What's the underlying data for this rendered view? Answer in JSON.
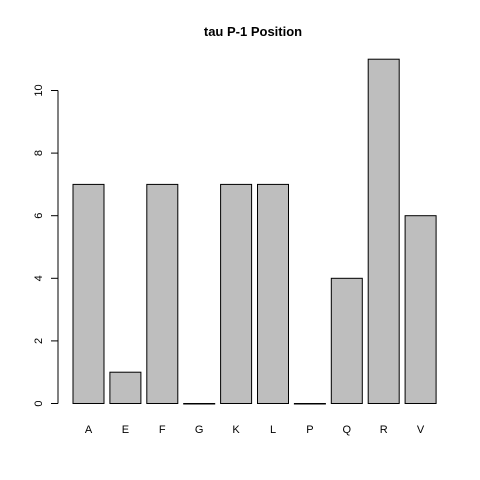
{
  "chart_data": {
    "type": "bar",
    "title": "tau P-1 Position",
    "categories": [
      "A",
      "E",
      "F",
      "G",
      "K",
      "L",
      "P",
      "Q",
      "R",
      "V"
    ],
    "values": [
      7,
      1,
      7,
      0,
      7,
      7,
      0,
      4,
      11,
      6
    ],
    "xlabel": "",
    "ylabel": "",
    "ylim": [
      0,
      11
    ],
    "yticks": [
      0,
      2,
      4,
      6,
      8,
      10
    ],
    "grid": false,
    "colors": {
      "bar_fill": "#bebebe",
      "bar_stroke": "#000000"
    }
  }
}
